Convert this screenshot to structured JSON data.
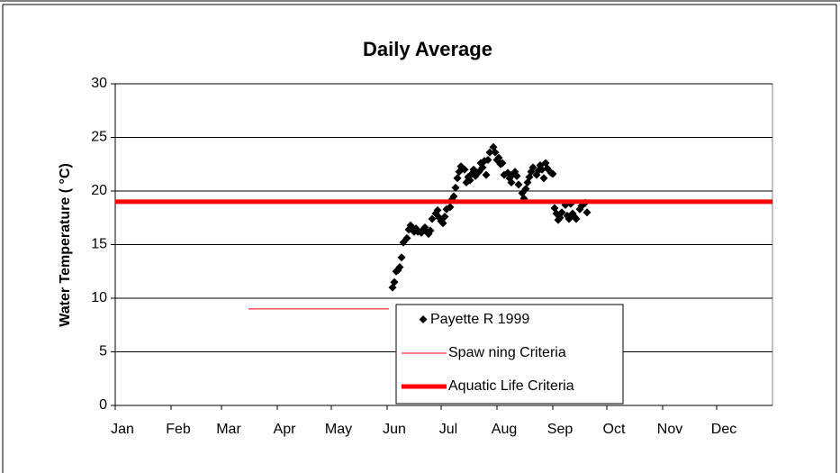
{
  "chart_data": {
    "type": "scatter",
    "title": "Daily Average",
    "ylabel": "Water Temperature (  °C)",
    "xlim": [
      0,
      365
    ],
    "xticks": [
      {
        "value": 0,
        "label": "Jan"
      },
      {
        "value": 31,
        "label": "Feb"
      },
      {
        "value": 59,
        "label": "Mar"
      },
      {
        "value": 90,
        "label": "Apr"
      },
      {
        "value": 120,
        "label": "May"
      },
      {
        "value": 151,
        "label": "Jun"
      },
      {
        "value": 181,
        "label": "Jul"
      },
      {
        "value": 212,
        "label": "Aug"
      },
      {
        "value": 243,
        "label": "Sep"
      },
      {
        "value": 273,
        "label": "Oct"
      },
      {
        "value": 304,
        "label": "Nov"
      },
      {
        "value": 334,
        "label": "Dec"
      }
    ],
    "ylim": [
      0,
      30
    ],
    "yticks": [
      0,
      5,
      10,
      15,
      20,
      25,
      30
    ],
    "grid": true,
    "legend": "bottom",
    "series": [
      {
        "name": "Payette R 1999",
        "type": "scatter",
        "color": "#000000",
        "x": [
          154,
          155,
          156,
          157,
          158,
          159,
          160,
          162,
          163,
          164,
          165,
          166,
          167,
          168,
          170,
          171,
          172,
          173,
          174,
          175,
          176,
          178,
          179,
          180,
          181,
          182,
          183,
          184,
          186,
          187,
          188,
          189,
          190,
          191,
          192,
          194,
          195,
          196,
          197,
          198,
          199,
          200,
          202,
          203,
          204,
          205,
          206,
          207,
          208,
          210,
          211,
          212,
          213,
          214,
          215,
          216,
          218,
          219,
          220,
          221,
          222,
          223,
          224,
          226,
          227,
          228,
          229,
          230,
          231,
          232,
          234,
          235,
          236,
          237,
          238,
          239,
          240,
          242,
          243,
          244,
          245,
          246,
          247,
          248,
          250,
          251,
          252,
          253,
          254,
          255,
          256,
          258,
          259,
          260,
          261,
          262
        ],
        "values": [
          11.0,
          11.5,
          12.5,
          12.6,
          12.9,
          13.8,
          15.2,
          15.6,
          16.4,
          16.8,
          16.6,
          16.2,
          16.5,
          16.2,
          16.1,
          16.4,
          16.6,
          16.2,
          16.0,
          16.3,
          17.4,
          17.9,
          18.2,
          17.5,
          17.2,
          17.0,
          17.6,
          18.3,
          18.5,
          19.2,
          19.5,
          20.3,
          21.2,
          21.8,
          22.3,
          22.0,
          20.8,
          21.3,
          21.0,
          21.6,
          22.0,
          21.4,
          21.8,
          22.6,
          22.2,
          22.8,
          21.5,
          22.9,
          23.6,
          24.1,
          23.6,
          22.9,
          23.1,
          22.5,
          22.6,
          21.5,
          21.7,
          21.2,
          20.8,
          21.6,
          21.8,
          21.4,
          20.6,
          19.8,
          19.3,
          20.2,
          20.8,
          21.3,
          21.8,
          22.2,
          21.5,
          21.9,
          22.4,
          22.0,
          21.2,
          22.6,
          22.1,
          21.7,
          21.6,
          18.4,
          17.9,
          17.3,
          17.5,
          18.0,
          18.7,
          17.7,
          17.4,
          18.8,
          17.9,
          17.6,
          17.4,
          18.3,
          18.6,
          18.8,
          18.9,
          18.0
        ]
      },
      {
        "name": "Spaw ning Criteria",
        "type": "line",
        "color": "#ff0000",
        "width": 1,
        "x": [
          74,
          152
        ],
        "values": [
          9,
          9
        ]
      },
      {
        "name": "Aquatic Life Criteria",
        "type": "line",
        "color": "#ff0000",
        "width": 5,
        "x": [
          0,
          365
        ],
        "values": [
          19,
          19
        ]
      }
    ]
  }
}
